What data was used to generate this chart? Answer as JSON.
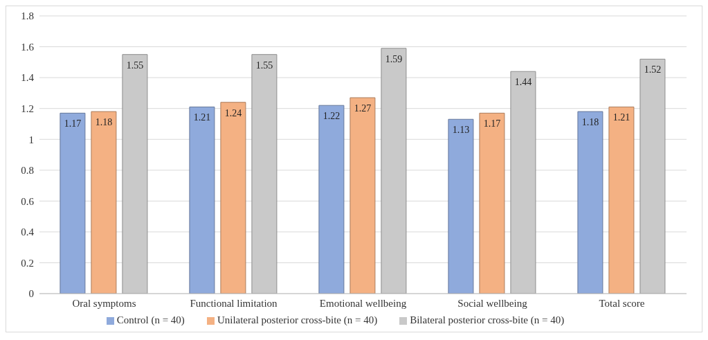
{
  "chart_data": {
    "type": "bar",
    "categories": [
      "Oral symptoms",
      "Functional limitation",
      "Emotional wellbeing",
      "Social wellbeing",
      "Total score"
    ],
    "series": [
      {
        "name": "Control (n = 40)",
        "color": "#8faadc",
        "values": [
          1.17,
          1.21,
          1.22,
          1.13,
          1.18
        ]
      },
      {
        "name": "Unilateral posterior cross-bite (n = 40)",
        "color": "#f4b183",
        "values": [
          1.18,
          1.24,
          1.27,
          1.17,
          1.21
        ]
      },
      {
        "name": "Bilateral posterior cross-bite (n = 40)",
        "color": "#c9c9c9",
        "values": [
          1.55,
          1.55,
          1.59,
          1.44,
          1.52
        ]
      }
    ],
    "ylim": [
      0,
      1.8
    ],
    "yticks": [
      0,
      0.2,
      0.4,
      0.6,
      0.8,
      1,
      1.2,
      1.4,
      1.6,
      1.8
    ],
    "grid": "y",
    "legend": "bottom",
    "data_labels": true
  }
}
